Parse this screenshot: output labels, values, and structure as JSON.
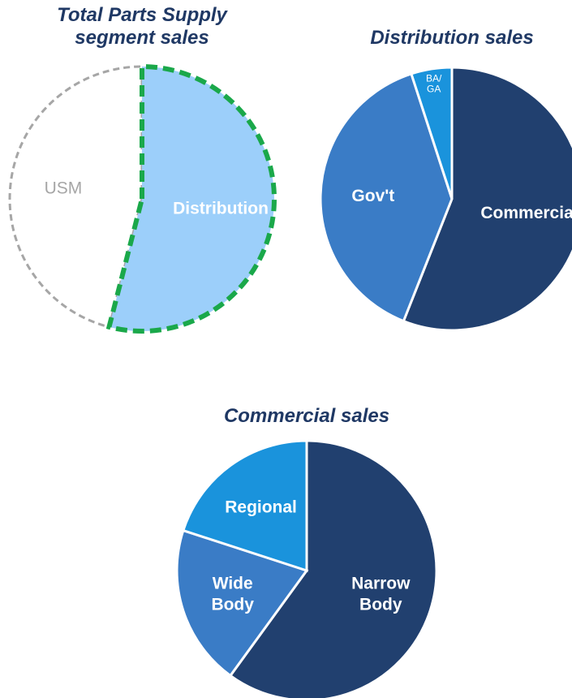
{
  "chart_data": [
    {
      "type": "pie",
      "title": "Total Parts Supply\nsegment sales",
      "categories": [
        "Distribution",
        "USM"
      ],
      "values": [
        54,
        46
      ],
      "colors": [
        "#9ccffa",
        "#ffffff"
      ],
      "edge_colors": [
        "#1aa84a",
        "#a6a6a6"
      ],
      "label_colors": [
        "#ffffff",
        "#a6a6a6"
      ],
      "edge_style": "dashed"
    },
    {
      "type": "pie",
      "title": "Distribution sales",
      "categories": [
        "Commercial",
        "Gov't",
        "BA/\nGA"
      ],
      "values": [
        56,
        39,
        5
      ],
      "colors": [
        "#21406f",
        "#3a7cc6",
        "#1a93dc"
      ],
      "label_colors": [
        "#ffffff",
        "#ffffff",
        "#ffffff"
      ]
    },
    {
      "type": "pie",
      "title": "Commercial sales",
      "categories": [
        "Narrow\nBody",
        "Wide\nBody",
        "Regional"
      ],
      "values": [
        60,
        20,
        20
      ],
      "colors": [
        "#21406f",
        "#3a7cc6",
        "#1a93dc"
      ],
      "label_colors": [
        "#ffffff",
        "#ffffff",
        "#ffffff"
      ]
    }
  ]
}
